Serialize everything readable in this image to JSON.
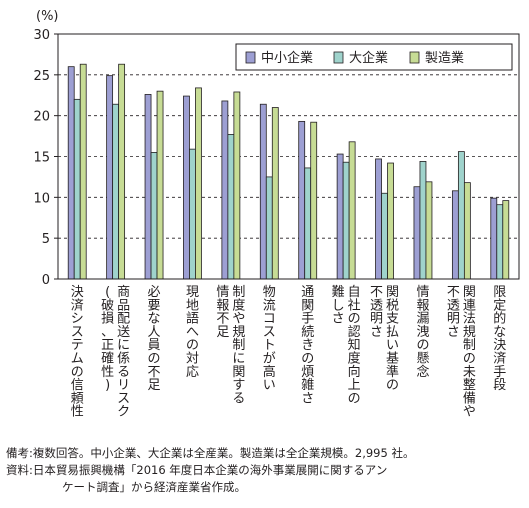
{
  "chart_data": {
    "type": "bar",
    "ylabel": "(%)",
    "ylim": [
      0,
      30
    ],
    "yticks": [
      0,
      5,
      10,
      15,
      20,
      25,
      30
    ],
    "grid": "horizontal dashed",
    "legend_position": "top-right",
    "categories": [
      [
        "決済システムの信頼性"
      ],
      [
        "商品配送に係るリスク",
        "(破損、正確性)"
      ],
      [
        "必要な人員の不足"
      ],
      [
        "現地語への対応"
      ],
      [
        "制度や規制に関する",
        "情報不足"
      ],
      [
        "物流コストが高い"
      ],
      [
        "通関手続きの煩雑さ"
      ],
      [
        "自社の認知度向上の",
        "難しさ"
      ],
      [
        "関税支払い基準の",
        "不透明さ"
      ],
      [
        "情報漏洩の懸念"
      ],
      [
        "関連法規制の未整備や",
        "不透明さ"
      ],
      [
        "限定的な決済手段"
      ]
    ],
    "series": [
      {
        "name": "中小企業",
        "color": "#9d9fd3",
        "values": [
          26.0,
          24.9,
          22.6,
          22.4,
          21.8,
          21.4,
          19.3,
          15.3,
          14.7,
          11.3,
          10.8,
          9.9
        ]
      },
      {
        "name": "大企業",
        "color": "#9fd3cc",
        "values": [
          22.0,
          21.4,
          15.5,
          15.9,
          17.7,
          12.5,
          13.6,
          14.3,
          10.5,
          14.4,
          15.6,
          9.1
        ]
      },
      {
        "name": "製造業",
        "color": "#c7dc95",
        "values": [
          26.3,
          26.3,
          23.0,
          23.4,
          22.9,
          21.0,
          19.2,
          16.8,
          14.2,
          11.9,
          11.8,
          9.6
        ]
      }
    ]
  },
  "notes": {
    "remark": "備考:複数回答。中小企業、大企業は全産業。製造業は全企業規模。2,995 社。",
    "source": "資料:日本貿易振興機構「2016 年度日本企業の海外事業展開に関するアン",
    "source_cont": "ケート調査」から経済産業省作成。"
  }
}
